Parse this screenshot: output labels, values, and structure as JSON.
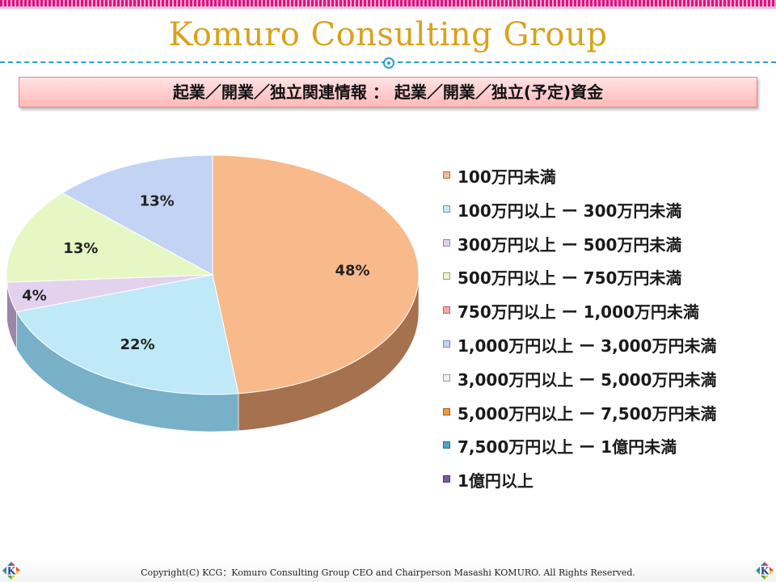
{
  "header": {
    "brand": "Komuro Consulting Group",
    "title": "起業／開業／独立関連情報 ： 起業／開業／独立(予定)資金"
  },
  "footer": {
    "copyright": "Copyright(C) KCG：Komuro Consulting Group CEO and Chairperson Masashi KOMURO. All Rights Reserved.",
    "logo_letter": "K"
  },
  "chart_data": {
    "type": "pie",
    "title": "",
    "categories": [
      "100万円未満",
      "100万円以上 ー 300万円未満",
      "300万円以上 ー 500万円未満",
      "500万円以上 ー 750万円未満",
      "750万円以上 ー 1,000万円未満",
      "1,000万円以上 ー 3,000万円未満",
      "3,000万円以上 ー 5,000万円未満",
      "5,000万円以上 ー 7,500万円未満",
      "7,500万円以上 ー 1億円未満",
      "1億円以上"
    ],
    "values": [
      48,
      22,
      4,
      13,
      0,
      13,
      0,
      0,
      0,
      0
    ],
    "data_labels": [
      "48%",
      "22%",
      "4%",
      "13%",
      "",
      "13%",
      "",
      "",
      "",
      ""
    ],
    "colors": [
      "#f8b98b",
      "#bfe9f7",
      "#e3d2ee",
      "#e6f7c4",
      "#f6a6a6",
      "#c3d3f3",
      "#eeeeee",
      "#ee9a40",
      "#4aa6c8",
      "#7d58a8"
    ],
    "side_colors": [
      "#a5714e",
      "#78b0c8",
      "#9a86a8",
      "#9db07e",
      "#b06a6a",
      "#7f93b8",
      "#aaaaaa",
      "#a5631f",
      "#2c6f88",
      "#533a72"
    ],
    "legend_position": "right",
    "style": "3d"
  }
}
